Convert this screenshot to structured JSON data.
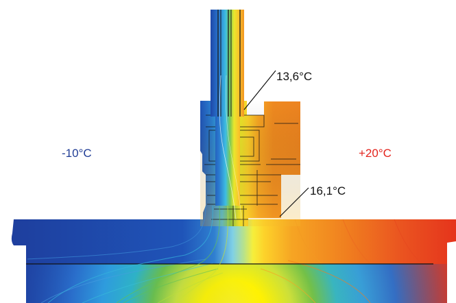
{
  "labels": {
    "outside_temp": "-10°C",
    "inside_temp": "+20°C",
    "point_temp_upper": "13,6°C",
    "point_temp_lower": "16,1°C"
  },
  "colors": {
    "cold": "#1a3f9e",
    "warm": "#e8281e",
    "text_cold": "#1f3c95",
    "text_warm": "#e3231c",
    "yellow": "#fff200",
    "orange": "#f08a20",
    "cyan": "#2fb7e6",
    "green": "#6cc24a"
  }
}
